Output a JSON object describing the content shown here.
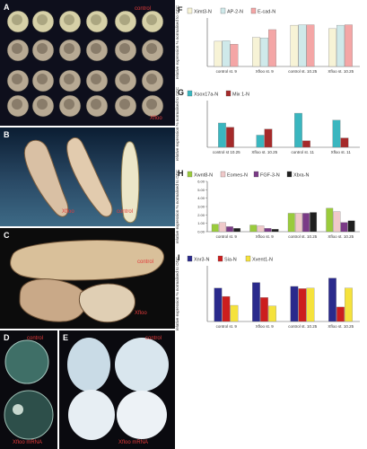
{
  "photo_panels": {
    "A": {
      "label": "A",
      "texts": [
        "control",
        "Xfloo"
      ]
    },
    "B": {
      "label": "B",
      "texts": [
        "Xfloo",
        "control"
      ]
    },
    "C": {
      "label": "C",
      "texts": [
        "control",
        "Xfloo"
      ]
    },
    "D": {
      "label": "D",
      "texts": [
        "control",
        "Xfloo mRNA"
      ]
    },
    "E": {
      "label": "E",
      "texts": [
        "control",
        "Xfloo mRNA"
      ]
    }
  },
  "colors": {
    "bar_green": "#9acb3c",
    "bar_pink": "#f28d8d",
    "bar_teal": "#3ab6bf",
    "bar_cream": "#d8ecec",
    "bar_darkred": "#a52a2a",
    "bar_purple": "#7a3a86",
    "bar_navy": "#2a2a8c",
    "bar_red": "#cc1e1e",
    "bar_yellow": "#f5e23c",
    "bar_black": "#1f1f1f",
    "bar_greyred": "#eac7c7",
    "pink_med": "#e87373"
  },
  "chart_data": [
    {
      "id": "F",
      "type": "bar",
      "label": "F",
      "ylabel": "relative expression % normalised to ODC",
      "categories": [
        "control st. 9",
        "Xfloo st. 9",
        "control st. 10.25",
        "Xfloo st. 10.25"
      ],
      "ylim": [
        0,
        1.0
      ],
      "series": [
        {
          "name": "Ximt3-N",
          "color": "#f7f3d6",
          "values": [
            0.52,
            0.6,
            0.85,
            0.78
          ]
        },
        {
          "name": "AP-2-N",
          "color": "#cfe9ea",
          "values": [
            0.53,
            0.59,
            0.86,
            0.85
          ]
        },
        {
          "name": "E-cad-N",
          "color": "#f4a6a6",
          "values": [
            0.46,
            0.76,
            0.86,
            0.86
          ]
        }
      ]
    },
    {
      "id": "G",
      "type": "bar",
      "label": "G",
      "ylabel": "relative expression % normalised to ODC",
      "categories": [
        "control st 10.25",
        "Xfloo st. 10.25",
        "control st. 11",
        "Xfloo st. 11"
      ],
      "ylim": [
        0,
        1.0
      ],
      "series": [
        {
          "name": "Xsox17a-N",
          "color": "#3ab6bf",
          "values": [
            0.52,
            0.26,
            0.73,
            0.58
          ]
        },
        {
          "name": "Mix 1-N",
          "color": "#a52a2a",
          "values": [
            0.43,
            0.39,
            0.14,
            0.2
          ]
        }
      ]
    },
    {
      "id": "H",
      "type": "bar",
      "label": "H",
      "ylabel": "relative expression % normalised to ODC",
      "categories": [
        "control st. 9",
        "Xfloo st. 9",
        "control st. 10.25",
        "Xfloo st. 10.25"
      ],
      "yticks": [
        "0.00",
        "1.00",
        "2.00",
        "3.00",
        "4.00",
        "5.00",
        "6.00"
      ],
      "ylim": [
        0,
        6.0
      ],
      "series": [
        {
          "name": "Xwnt8-N",
          "color": "#9acb3c",
          "values": [
            0.9,
            0.8,
            2.2,
            2.8
          ]
        },
        {
          "name": "Eomes-N",
          "color": "#efc9c9",
          "values": [
            1.1,
            0.7,
            2.2,
            2.4
          ]
        },
        {
          "name": "FGF-3-N",
          "color": "#7a3a86",
          "values": [
            0.6,
            0.4,
            2.2,
            1.1
          ]
        },
        {
          "name": "Xbra-N",
          "color": "#1f1f1f",
          "values": [
            0.4,
            0.3,
            2.3,
            1.3
          ]
        }
      ]
    },
    {
      "id": "I",
      "type": "bar",
      "label": "I",
      "ylabel": "relative expression % normalised to ODC",
      "categories": [
        "control st. 9",
        "Xfloo st. 9",
        "control st. 10.25",
        "Xfloo st. 10.25"
      ],
      "ylim": [
        0,
        1.0
      ],
      "series": [
        {
          "name": "Xnr3-N",
          "color": "#2a2a8c",
          "values": [
            0.6,
            0.7,
            0.63,
            0.78
          ]
        },
        {
          "name": "Sia-N",
          "color": "#cc1e1e",
          "values": [
            0.45,
            0.43,
            0.59,
            0.26
          ]
        },
        {
          "name": "Xvent1-N",
          "color": "#f5e23c",
          "values": [
            0.29,
            0.28,
            0.6,
            0.6
          ]
        }
      ]
    }
  ]
}
